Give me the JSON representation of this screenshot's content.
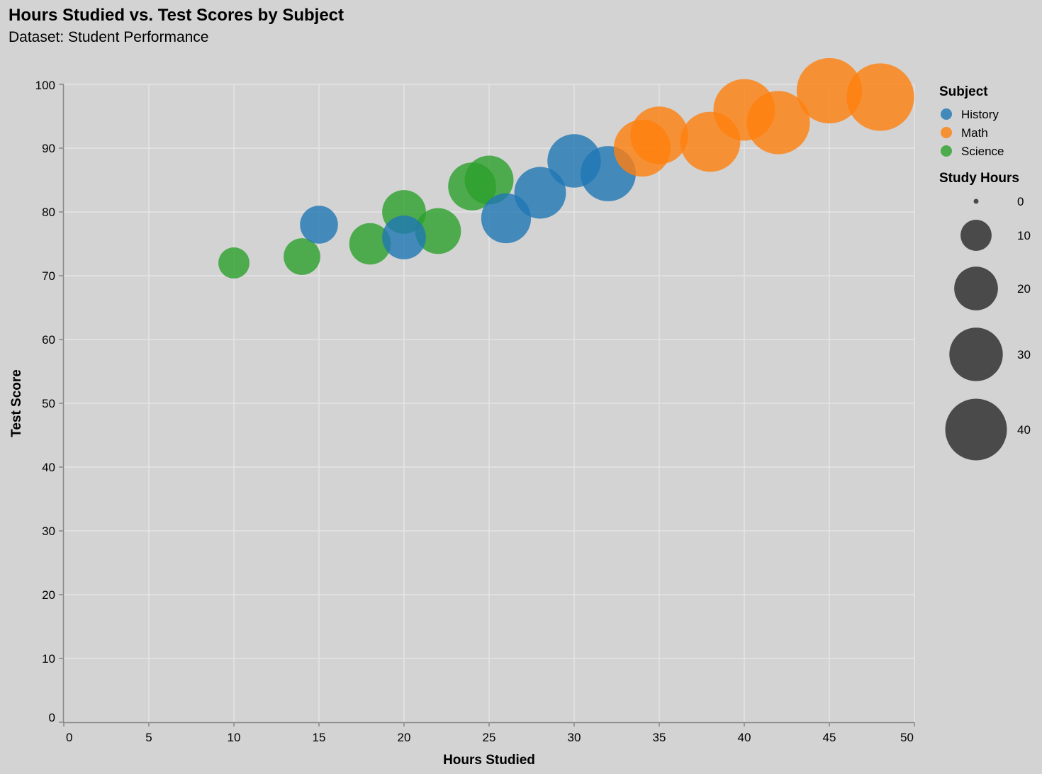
{
  "title": "Hours Studied vs. Test Scores by Subject",
  "subtitle": "Dataset: Student Performance",
  "colors": {
    "background": "#d3d3d3",
    "grid": "#e4e4e4",
    "axis": "#888888",
    "History": "#1f77b4",
    "Math": "#ff7f0e",
    "Science": "#2ca02c",
    "size_legend_symbol": "#4a4a4a"
  },
  "chart_data": {
    "type": "scatter",
    "title": "Hours Studied vs. Test Scores by Subject",
    "subtitle": "Dataset: Student Performance",
    "xlabel": "Hours Studied",
    "ylabel": "Test Score",
    "xlim": [
      0,
      50
    ],
    "ylim": [
      0,
      100
    ],
    "x_ticks": [
      "0",
      "5",
      "10",
      "15",
      "20",
      "25",
      "30",
      "35",
      "40",
      "45",
      "50"
    ],
    "y_ticks": [
      "0",
      "10",
      "20",
      "30",
      "40",
      "50",
      "60",
      "70",
      "80",
      "90",
      "100"
    ],
    "grid": true,
    "size_encoding": "Study Hours",
    "color_encoding": "Subject",
    "legend": {
      "placement": "right",
      "color_title": "Subject",
      "color_items": [
        "History",
        "Math",
        "Science"
      ],
      "size_title": "Study Hours",
      "size_items": [
        {
          "label": "0",
          "value": 0
        },
        {
          "label": "10",
          "value": 10
        },
        {
          "label": "20",
          "value": 20
        },
        {
          "label": "30",
          "value": 30
        },
        {
          "label": "40",
          "value": 40
        }
      ]
    },
    "series": [
      {
        "name": "Science",
        "points": [
          {
            "x": 10,
            "y": 72
          },
          {
            "x": 14,
            "y": 73
          },
          {
            "x": 18,
            "y": 75
          },
          {
            "x": 20,
            "y": 80
          },
          {
            "x": 22,
            "y": 77
          },
          {
            "x": 24,
            "y": 84
          },
          {
            "x": 25,
            "y": 85
          }
        ]
      },
      {
        "name": "History",
        "points": [
          {
            "x": 15,
            "y": 78
          },
          {
            "x": 20,
            "y": 76
          },
          {
            "x": 26,
            "y": 79
          },
          {
            "x": 28,
            "y": 83
          },
          {
            "x": 30,
            "y": 88
          },
          {
            "x": 32,
            "y": 86
          }
        ]
      },
      {
        "name": "Math",
        "points": [
          {
            "x": 34,
            "y": 90
          },
          {
            "x": 35,
            "y": 92
          },
          {
            "x": 38,
            "y": 91
          },
          {
            "x": 40,
            "y": 96
          },
          {
            "x": 42,
            "y": 94
          },
          {
            "x": 45,
            "y": 99
          },
          {
            "x": 48,
            "y": 98
          }
        ]
      }
    ]
  }
}
